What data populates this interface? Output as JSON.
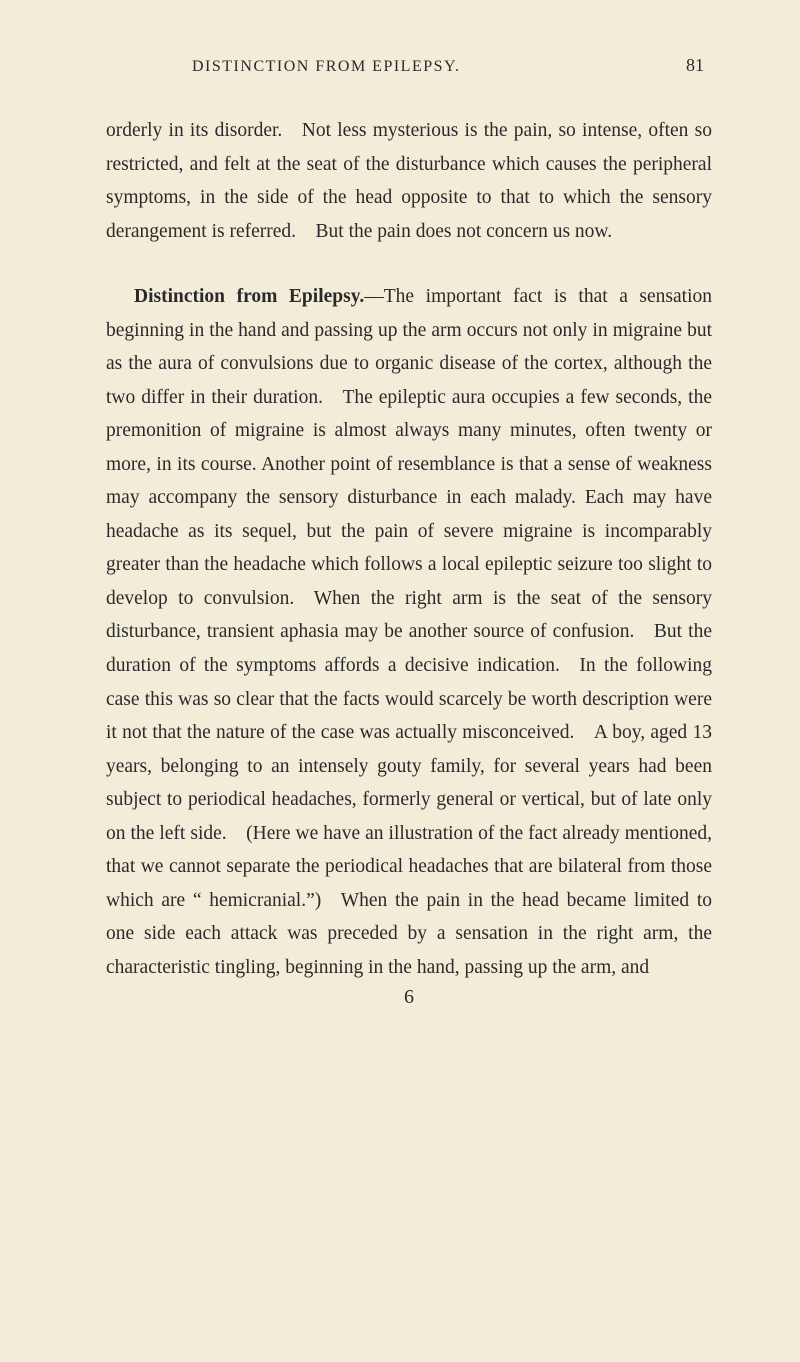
{
  "header": {
    "running_head": "DISTINCTION FROM EPILEPSY.",
    "page_number": "81"
  },
  "paragraphs": {
    "p1": "orderly in its disorder. Not less mysterious is the pain, so intense, often so restricted, and felt at the seat of the disturbance which causes the peripheral symptoms, in the side of the head opposite to that to which the sensory derangement is referred. But the pain does not concern us now.",
    "p2_lead": "Distinction from Epilepsy.",
    "p2_body": "—The important fact is that a sensation beginning in the hand and passing up the arm occurs not only in migraine but as the aura of convulsions due to organic disease of the cortex, although the two differ in their duration. The epileptic aura occupies a few seconds, the premonition of migraine is almost always many minutes, often twenty or more, in its course. Another point of resemblance is that a sense of weakness may accompany the sensory disturbance in each malady. Each may have headache as its sequel, but the pain of severe migraine is incomparably greater than the headache which follows a local epileptic seizure too slight to develop to convulsion. When the right arm is the seat of the sensory disturbance, transient aphasia may be another source of confusion. But the duration of the symptoms affords a decisive indication. In the following case this was so clear that the facts would scarcely be worth description were it not that the nature of the case was actually misconceived. A boy, aged 13 years, belonging to an intensely gouty family, for several years had been subject to periodical headaches, formerly general or vertical, but of late only on the left side. (Here we have an illustration of the fact already mentioned, that we cannot separate the periodical headaches that are bilateral from those which are “ hemicranial.”) When the pain in the head became limited to one side each attack was preceded by a sensation in the right arm, the characteristic tingling, beginning in the hand, passing up the arm, and"
  },
  "catchword": "6"
}
